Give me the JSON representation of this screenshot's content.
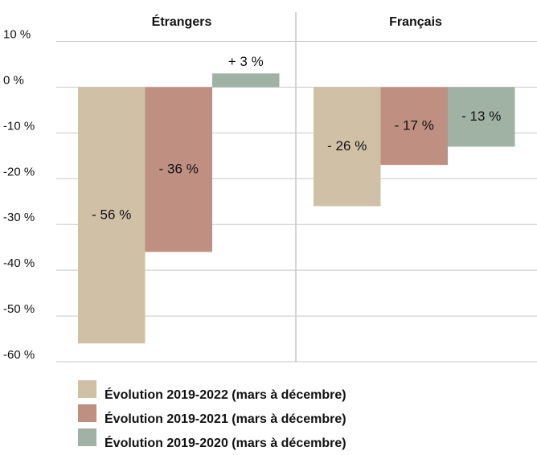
{
  "chart_data": {
    "type": "bar",
    "categories": [
      "Étrangers",
      "Français"
    ],
    "series": [
      {
        "name": "Évolution 2019-2022 (mars à décembre)",
        "color": "#cfc0a6",
        "values": [
          -56,
          -26
        ],
        "value_labels": [
          "- 56 %",
          "- 26 %"
        ]
      },
      {
        "name": "Évolution 2019-2021 (mars à décembre)",
        "color": "#bf8f82",
        "values": [
          -36,
          -17
        ],
        "value_labels": [
          "- 36 %",
          "- 17 %"
        ]
      },
      {
        "name": "Évolution 2019-2020 (mars à décembre)",
        "color": "#9fb2a3",
        "values": [
          3,
          -13
        ],
        "value_labels": [
          "+ 3 %",
          "- 13 %"
        ]
      }
    ],
    "ylim": [
      -60,
      10
    ],
    "yticks": [
      {
        "value": 10,
        "label": "10 %"
      },
      {
        "value": 0,
        "label": "0 %"
      },
      {
        "value": -10,
        "label": "-10 %"
      },
      {
        "value": -20,
        "label": "-20 %"
      },
      {
        "value": -30,
        "label": "-30 %"
      },
      {
        "value": -40,
        "label": "-40 %"
      },
      {
        "value": -50,
        "label": "-50 %"
      },
      {
        "value": -60,
        "label": "-60 %"
      }
    ],
    "grid": true
  }
}
